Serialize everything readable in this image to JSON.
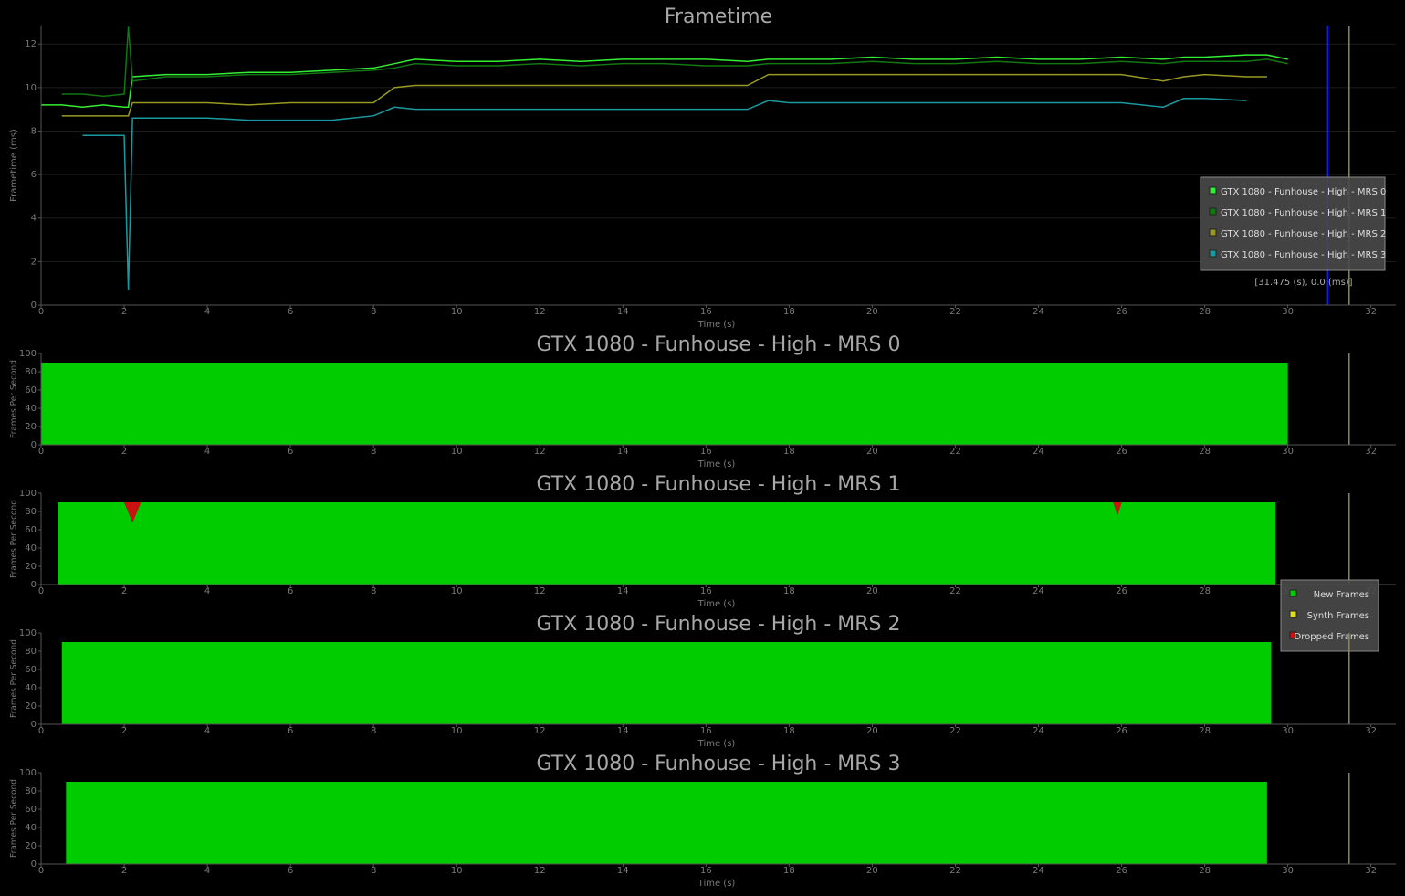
{
  "chart_data": [
    {
      "type": "line",
      "title": "Frametime",
      "xlabel": "Time (s)",
      "ylabel": "Frametime (ms)",
      "x": [
        0,
        0.5,
        1,
        1.5,
        2,
        2.1,
        2.2,
        3,
        4,
        5,
        6,
        7,
        8,
        8.5,
        9,
        10,
        11,
        12,
        13,
        14,
        15,
        16,
        17,
        17.5,
        18,
        19,
        20,
        21,
        22,
        23,
        24,
        25,
        26,
        27,
        27.5,
        28,
        29,
        29.5,
        30
      ],
      "series": [
        {
          "name": "GTX 1080 - Funhouse - High - MRS 0",
          "color": "#33ee33",
          "values": [
            9.2,
            9.2,
            9.1,
            9.2,
            9.1,
            9.1,
            10.5,
            10.6,
            10.6,
            10.7,
            10.7,
            10.8,
            10.9,
            11.1,
            11.3,
            11.2,
            11.2,
            11.3,
            11.2,
            11.3,
            11.3,
            11.3,
            11.2,
            11.3,
            11.3,
            11.3,
            11.4,
            11.3,
            11.3,
            11.4,
            11.3,
            11.3,
            11.4,
            11.3,
            11.4,
            11.4,
            11.5,
            11.5,
            11.3
          ]
        },
        {
          "name": "GTX 1080 - Funhouse - High - MRS 1",
          "color": "#117711",
          "values": [
            null,
            9.7,
            9.7,
            9.6,
            9.7,
            12.8,
            10.3,
            10.5,
            10.5,
            10.6,
            10.6,
            10.7,
            10.8,
            10.9,
            11.1,
            11.0,
            11.0,
            11.1,
            11.0,
            11.1,
            11.1,
            11.0,
            11.0,
            11.1,
            11.1,
            11.1,
            11.2,
            11.1,
            11.1,
            11.2,
            11.1,
            11.1,
            11.2,
            11.1,
            11.2,
            11.2,
            11.2,
            11.3,
            11.1
          ]
        },
        {
          "name": "GTX 1080 - Funhouse - High - MRS 2",
          "color": "#999922",
          "values": [
            null,
            8.7,
            8.7,
            8.7,
            8.7,
            8.7,
            9.3,
            9.3,
            9.3,
            9.2,
            9.3,
            9.3,
            9.3,
            10.0,
            10.1,
            10.1,
            10.1,
            10.1,
            10.1,
            10.1,
            10.1,
            10.1,
            10.1,
            10.6,
            10.6,
            10.6,
            10.6,
            10.6,
            10.6,
            10.6,
            10.6,
            10.6,
            10.6,
            10.3,
            10.5,
            10.6,
            10.5,
            10.5,
            null
          ]
        },
        {
          "name": "GTX 1080 - Funhouse - High - MRS 3",
          "color": "#1a9aa0",
          "values": [
            null,
            null,
            7.8,
            7.8,
            7.8,
            0.7,
            8.6,
            8.6,
            8.6,
            8.5,
            8.5,
            8.5,
            8.7,
            9.1,
            9.0,
            9.0,
            9.0,
            9.0,
            9.0,
            9.0,
            9.0,
            9.0,
            9.0,
            9.4,
            9.3,
            9.3,
            9.3,
            9.3,
            9.3,
            9.3,
            9.3,
            9.3,
            9.3,
            9.1,
            9.5,
            9.5,
            9.4,
            null,
            null
          ]
        }
      ],
      "xlim": [
        0,
        32.6
      ],
      "ylim": [
        0,
        12.85
      ],
      "xticks": [
        0,
        2,
        4,
        6,
        8,
        10,
        12,
        14,
        16,
        18,
        20,
        22,
        24,
        26,
        28,
        30,
        32
      ],
      "yticks": [
        0,
        2,
        4,
        6,
        8,
        10,
        12
      ],
      "grid": true,
      "legend": "center right",
      "vlines": [
        {
          "x": 30.96,
          "color": "#1a1aee"
        },
        {
          "x": 31.475,
          "color": "#8a8a50"
        }
      ],
      "annotation": "[31.475 (s), 0.0 (ms)]"
    },
    {
      "type": "area",
      "title": "GTX 1080 - Funhouse - High - MRS 0",
      "xlabel": "Time (s)",
      "ylabel": "Frames Per Second",
      "x": [
        0,
        30
      ],
      "series": [
        {
          "name": "New Frames",
          "color": "#00cc00",
          "values": [
            90,
            90
          ]
        }
      ],
      "xlim": [
        0,
        32.6
      ],
      "ylim": [
        0,
        100
      ],
      "xticks": [
        0,
        2,
        4,
        6,
        8,
        10,
        12,
        14,
        16,
        18,
        20,
        22,
        24,
        26,
        28,
        30,
        32
      ],
      "yticks": [
        0,
        20,
        40,
        60,
        80,
        100
      ],
      "vlines": [
        {
          "x": 31.475,
          "color": "#8a8a50"
        }
      ]
    },
    {
      "type": "area",
      "title": "GTX 1080 - Funhouse - High - MRS 1",
      "xlabel": "Time (s)",
      "ylabel": "Frames Per Second",
      "x": [
        0.4,
        2.0,
        2.2,
        2.4,
        25.8,
        25.9,
        26.0,
        29.7
      ],
      "series": [
        {
          "name": "New Frames",
          "color": "#00cc00",
          "values": [
            90,
            90,
            68,
            90,
            90,
            76,
            90,
            90
          ]
        },
        {
          "name": "Synth Frames",
          "color": "#dddd22",
          "values": [
            0,
            0,
            0,
            0,
            0,
            0,
            0,
            0
          ]
        },
        {
          "name": "Dropped Frames",
          "color": "#cc1111",
          "values": [
            0,
            0,
            22,
            0,
            0,
            14,
            0,
            0
          ]
        }
      ],
      "xlim": [
        0,
        32.6
      ],
      "ylim": [
        0,
        100
      ],
      "xticks": [
        0,
        2,
        4,
        6,
        8,
        10,
        12,
        14,
        16,
        18,
        20,
        22,
        24,
        26,
        28,
        30,
        32
      ],
      "yticks": [
        0,
        20,
        40,
        60,
        80,
        100
      ],
      "legend": "lower right",
      "vlines": [
        {
          "x": 31.475,
          "color": "#8a8a50"
        }
      ]
    },
    {
      "type": "area",
      "title": "GTX 1080 - Funhouse - High - MRS 2",
      "xlabel": "Time (s)",
      "ylabel": "Frames Per Second",
      "x": [
        0.5,
        29.6
      ],
      "series": [
        {
          "name": "New Frames",
          "color": "#00cc00",
          "values": [
            90,
            90
          ]
        }
      ],
      "xlim": [
        0,
        32.6
      ],
      "ylim": [
        0,
        100
      ],
      "xticks": [
        0,
        2,
        4,
        6,
        8,
        10,
        12,
        14,
        16,
        18,
        20,
        22,
        24,
        26,
        28,
        30,
        32
      ],
      "yticks": [
        0,
        20,
        40,
        60,
        80,
        100
      ],
      "vlines": [
        {
          "x": 31.475,
          "color": "#8a8a50"
        }
      ]
    },
    {
      "type": "area",
      "title": "GTX 1080 - Funhouse - High - MRS 3",
      "xlabel": "Time (s)",
      "ylabel": "Frames Per Second",
      "x": [
        0.6,
        29.5
      ],
      "series": [
        {
          "name": "New Frames",
          "color": "#00cc00",
          "values": [
            90,
            90
          ]
        }
      ],
      "xlim": [
        0,
        32.6
      ],
      "ylim": [
        0,
        100
      ],
      "xticks": [
        0,
        2,
        4,
        6,
        8,
        10,
        12,
        14,
        16,
        18,
        20,
        22,
        24,
        26,
        28,
        30,
        32
      ],
      "yticks": [
        0,
        20,
        40,
        60,
        80,
        100
      ],
      "vlines": [
        {
          "x": 31.475,
          "color": "#8a8a50"
        }
      ]
    }
  ]
}
